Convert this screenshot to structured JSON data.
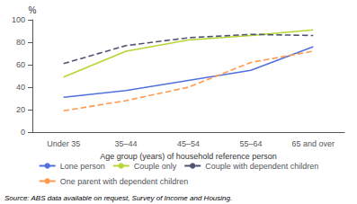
{
  "chart_data": {
    "type": "line",
    "categories": [
      "Under 35",
      "35–44",
      "45–54",
      "55–64",
      "65 and over"
    ],
    "series": [
      {
        "name": "Lone person",
        "values": [
          31,
          37,
          46,
          55,
          76
        ],
        "line_style": "solid"
      },
      {
        "name": "Couple only",
        "values": [
          49,
          72,
          82,
          86,
          91
        ],
        "line_style": "solid"
      },
      {
        "name": "Couple with dependent children",
        "values": [
          61,
          77,
          84,
          87,
          86
        ],
        "line_style": "dashed"
      },
      {
        "name": "One parent with dependent children",
        "values": [
          19,
          28,
          40,
          62,
          72
        ],
        "line_style": "dashed"
      }
    ],
    "ylabel": "%",
    "xlabel": "Age group (years) of household reference person",
    "annotations": [
      "Source: ABS data available on request, Survey of Income and Housing."
    ],
    "ylim": [
      0,
      100
    ],
    "yticks": [
      0,
      20,
      40,
      60,
      80,
      100
    ],
    "grid": false,
    "legend": "bottom"
  }
}
